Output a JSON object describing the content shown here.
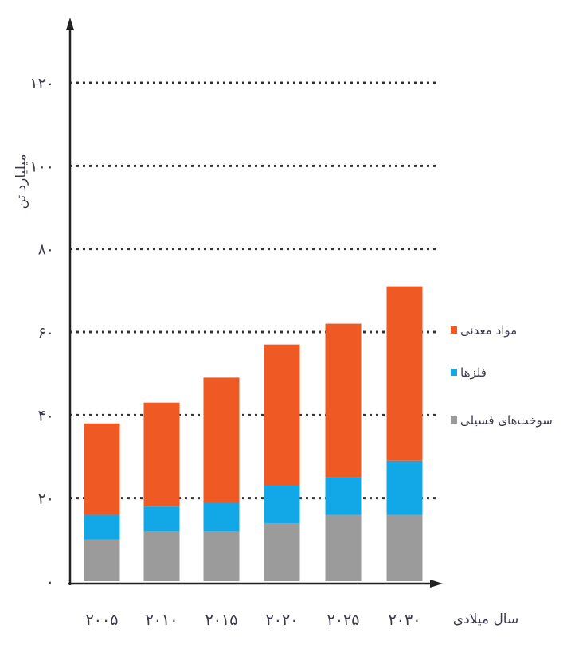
{
  "chart_data": {
    "type": "bar",
    "stacked": true,
    "xlabel": "سال میلادی",
    "ylabel": "میلیارد تن",
    "ylim": [
      0,
      120
    ],
    "yticks": [
      0,
      20,
      40,
      60,
      80,
      100,
      120
    ],
    "ytick_labels": [
      "۰",
      "۲۰",
      "۴۰",
      "۶۰",
      "۸۰",
      "۱۰۰",
      "۱۲۰"
    ],
    "grid": "horizontal dotted",
    "legend_position": "right",
    "categories": [
      "۲۰۰۵",
      "۲۰۱۰",
      "۲۰۱۵",
      "۲۰۲۰",
      "۲۰۲۵",
      "۲۰۳۰"
    ],
    "series": [
      {
        "name": "سوخت‌های فسیلی",
        "color": "#9b9b9b",
        "values": [
          10,
          12,
          12,
          14,
          16,
          16
        ]
      },
      {
        "name": "فلزها",
        "color": "#12a8e8",
        "values": [
          6,
          6,
          7,
          9,
          9,
          13
        ]
      },
      {
        "name": "مواد معدنی",
        "color": "#ef5a24",
        "values": [
          22,
          25,
          30,
          34,
          37,
          42
        ]
      }
    ],
    "legend_order": [
      "مواد معدنی",
      "فلزها",
      "سوخت‌های فسیلی"
    ]
  }
}
